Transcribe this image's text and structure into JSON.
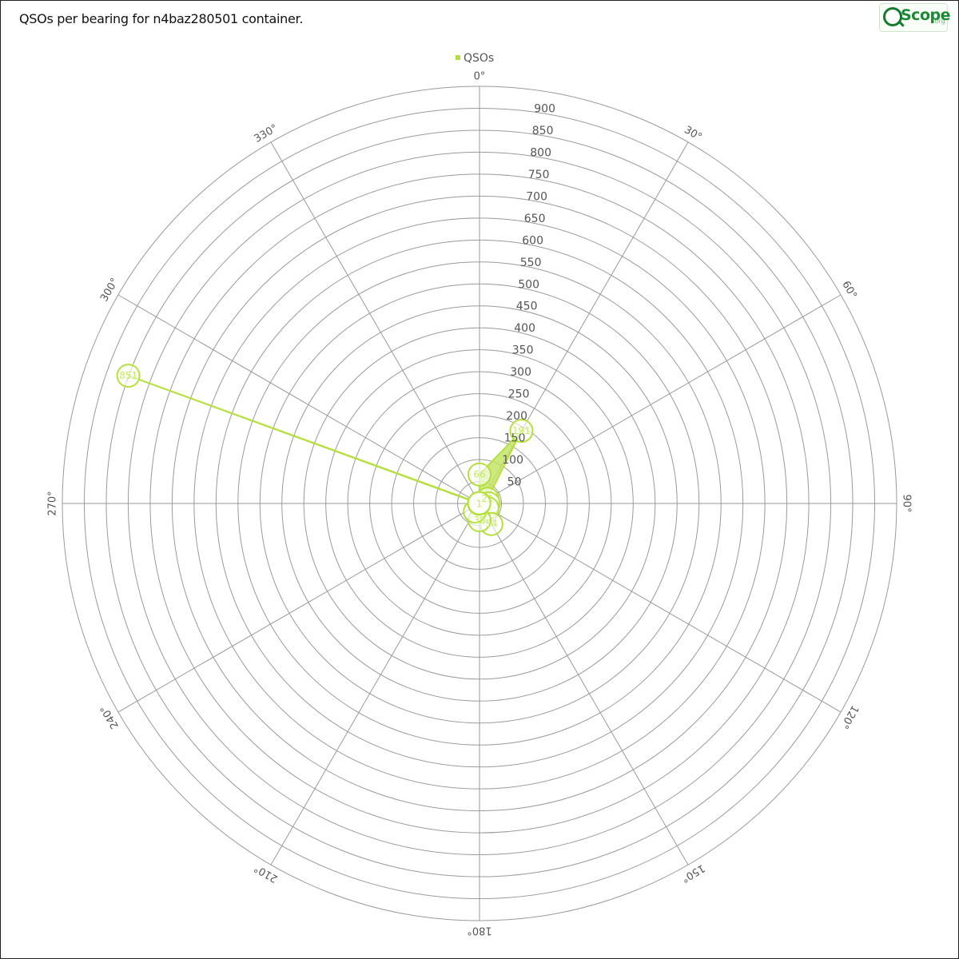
{
  "header": {
    "title": "QSOs per bearing for n4baz280501 container.",
    "logo_text": "Scope",
    "logo_suffix": ".org"
  },
  "colors": {
    "series": "#b5df3c",
    "series_fill": "#c5e46a",
    "grid": "#9a9a9a",
    "text": "#555555"
  },
  "chart_data": {
    "type": "radar",
    "title": "QSOs per bearing for n4baz280501 container.",
    "legend": {
      "position": "top",
      "entries": [
        "QSOs"
      ]
    },
    "radial_axis": {
      "min": 0,
      "max": 950,
      "ticks": [
        50,
        100,
        150,
        200,
        250,
        300,
        350,
        400,
        450,
        500,
        550,
        600,
        650,
        700,
        750,
        800,
        850,
        900
      ],
      "tick_labels": [
        "50",
        "100",
        "150",
        "200",
        "250",
        "300",
        "350",
        "400",
        "450",
        "500",
        "550",
        "600",
        "650",
        "700",
        "750",
        "800",
        "850",
        "900"
      ]
    },
    "angular_axis": {
      "spokes": [
        0,
        30,
        60,
        90,
        120,
        150,
        180,
        210,
        240,
        270,
        300,
        330
      ],
      "labels": [
        "0°",
        "30°",
        "60°",
        "90°",
        "120°",
        "150°",
        "180°",
        "210°",
        "240°",
        "270°",
        "300°",
        "330°"
      ]
    },
    "grid": true,
    "series": [
      {
        "name": "QSOs",
        "points": [
          {
            "bearing": 0,
            "value": 66
          },
          {
            "bearing": 30,
            "value": 191
          },
          {
            "bearing": 60,
            "value": 21
          },
          {
            "bearing": 90,
            "value": 21
          },
          {
            "bearing": 120,
            "value": 21
          },
          {
            "bearing": 150,
            "value": 54
          },
          {
            "bearing": 180,
            "value": 38
          },
          {
            "bearing": 210,
            "value": 21
          },
          {
            "bearing": 240,
            "value": 1
          },
          {
            "bearing": 270,
            "value": 1
          },
          {
            "bearing": 290,
            "value": 851
          },
          {
            "bearing": 330,
            "value": 1
          }
        ],
        "point_labels": [
          "66",
          "191",
          "21",
          "",
          "",
          "54",
          "38",
          "",
          "1",
          "",
          "851",
          ""
        ]
      }
    ]
  }
}
